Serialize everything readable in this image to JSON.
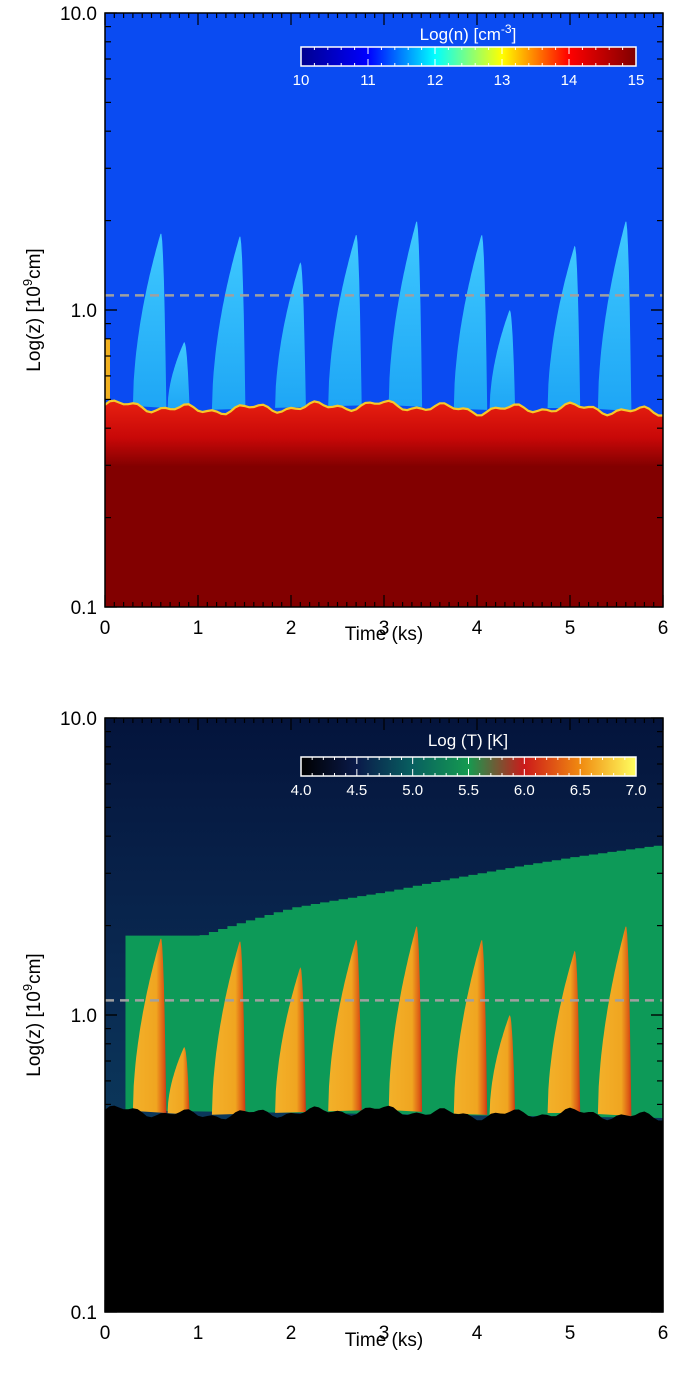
{
  "chart_data": [
    {
      "type": "heatmap",
      "title": "",
      "xlabel": "Time (ks)",
      "ylabel": "Log(z) [10^9cm]",
      "ylabel_parts": {
        "pre": "Log(z) [10",
        "sup": "9",
        "post": "cm]"
      },
      "xlim": [
        0,
        6
      ],
      "ylim": [
        0.1,
        10.0
      ],
      "yscale": "log",
      "x_ticks": [
        "0",
        "1",
        "2",
        "3",
        "4",
        "5",
        "6"
      ],
      "y_ticks": [
        "0.1",
        "1.0",
        "10.0"
      ],
      "reference_line_z": 1.12,
      "colorbar": {
        "title": "Log(n) [cm^-3]",
        "title_parts": {
          "pre": "Log(n) [cm",
          "sup": "-3",
          "post": "]"
        },
        "range": [
          10,
          15
        ],
        "tick_labels": [
          "10",
          "11",
          "12",
          "13",
          "14",
          "15"
        ],
        "colors": [
          "#00008f",
          "#0000ff",
          "#00ffff",
          "#ffff00",
          "#ff0000",
          "#800000"
        ]
      },
      "background_value": 11.4,
      "chromosphere_value": 14.6,
      "coronal_loop_value": 12.3,
      "transition_region_z": [
        0.48,
        0.46,
        0.47,
        0.48,
        0.46,
        0.47,
        0.45
      ],
      "transition_region_t": [
        0.1,
        1.0,
        2.0,
        3.0,
        4.0,
        5.0,
        6.0
      ],
      "events": [
        {
          "t": 0.6,
          "peak_z": 1.82
        },
        {
          "t": 0.85,
          "peak_z": 0.78
        },
        {
          "t": 1.45,
          "peak_z": 1.78
        },
        {
          "t": 2.1,
          "peak_z": 1.45
        },
        {
          "t": 2.7,
          "peak_z": 1.8
        },
        {
          "t": 3.35,
          "peak_z": 2.0
        },
        {
          "t": 4.05,
          "peak_z": 1.8
        },
        {
          "t": 4.35,
          "peak_z": 1.0
        },
        {
          "t": 5.05,
          "peak_z": 1.65
        },
        {
          "t": 5.6,
          "peak_z": 2.0
        }
      ]
    },
    {
      "type": "heatmap",
      "title": "",
      "xlabel": "Time (ks)",
      "ylabel": "Log(z) [10^9cm]",
      "ylabel_parts": {
        "pre": "Log(z) [10",
        "sup": "9",
        "post": "cm]"
      },
      "xlim": [
        0,
        6
      ],
      "ylim": [
        0.1,
        10.0
      ],
      "yscale": "log",
      "x_ticks": [
        "0",
        "1",
        "2",
        "3",
        "4",
        "5",
        "6"
      ],
      "y_ticks": [
        "0.1",
        "1.0",
        "10.0"
      ],
      "reference_line_z": 1.12,
      "colorbar": {
        "title": "Log (T) [K]",
        "title_parts": {
          "pre": "Log (T) [K]",
          "sup": "",
          "post": ""
        },
        "range": [
          4.0,
          7.0
        ],
        "tick_labels": [
          "4.0",
          "4.5",
          "5.0",
          "5.5",
          "6.0",
          "6.5",
          "7.0"
        ],
        "colors": [
          "#000000",
          "#0a1a4a",
          "#086060",
          "#159a50",
          "#cc1a1a",
          "#f08a10",
          "#ffff60"
        ]
      },
      "corona_boundary_z": [
        1.85,
        1.85,
        2.3,
        2.6,
        3.0,
        3.4,
        3.75
      ],
      "corona_boundary_t": [
        0.2,
        1.0,
        2.0,
        3.0,
        4.0,
        5.0,
        6.0
      ],
      "transition_region_z": [
        0.48,
        0.46,
        0.47,
        0.48,
        0.46,
        0.47,
        0.45
      ],
      "events": [
        {
          "t": 0.6,
          "peak_z": 1.82
        },
        {
          "t": 0.85,
          "peak_z": 0.78
        },
        {
          "t": 1.45,
          "peak_z": 1.78
        },
        {
          "t": 2.1,
          "peak_z": 1.45
        },
        {
          "t": 2.7,
          "peak_z": 1.8
        },
        {
          "t": 3.35,
          "peak_z": 2.0
        },
        {
          "t": 4.05,
          "peak_z": 1.8
        },
        {
          "t": 4.35,
          "peak_z": 1.0
        },
        {
          "t": 5.05,
          "peak_z": 1.65
        },
        {
          "t": 5.6,
          "peak_z": 2.0
        }
      ]
    }
  ]
}
